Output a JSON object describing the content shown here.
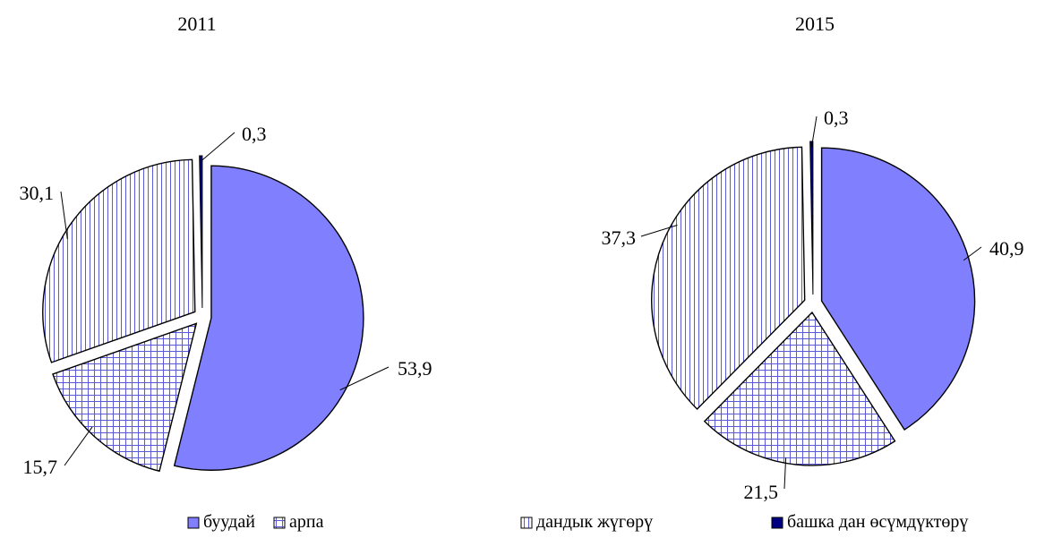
{
  "chart_data": [
    {
      "type": "pie",
      "title": "2011",
      "categories": [
        "буудай",
        "арпа",
        "дандык жүгөрү",
        "башка дан өсүмдүктөрү"
      ],
      "values": [
        53.9,
        15.7,
        30.1,
        0.3
      ],
      "labels": [
        "53,9",
        "15,7",
        "30,1",
        "0,3"
      ],
      "exploded": true
    },
    {
      "type": "pie",
      "title": "2015",
      "categories": [
        "буудай",
        "арпа",
        "дандык жүгөрү",
        "башка дан өсүмдүктөрү"
      ],
      "values": [
        40.9,
        21.5,
        37.3,
        0.3
      ],
      "labels": [
        "40,9",
        "21,5",
        "37,3",
        "0,3"
      ],
      "exploded": true
    }
  ],
  "legend": {
    "items": [
      {
        "label": "буудай",
        "pattern": "solid",
        "color": "#8080ff"
      },
      {
        "label": "арпа",
        "pattern": "grid",
        "color": "#6a6ad0"
      },
      {
        "label": "дандык жүгөрү",
        "pattern": "vertical-lines",
        "color": "#6a6ad0"
      },
      {
        "label": "башка дан өсүмдүктөрү",
        "pattern": "solid",
        "color": "#000080"
      }
    ]
  }
}
